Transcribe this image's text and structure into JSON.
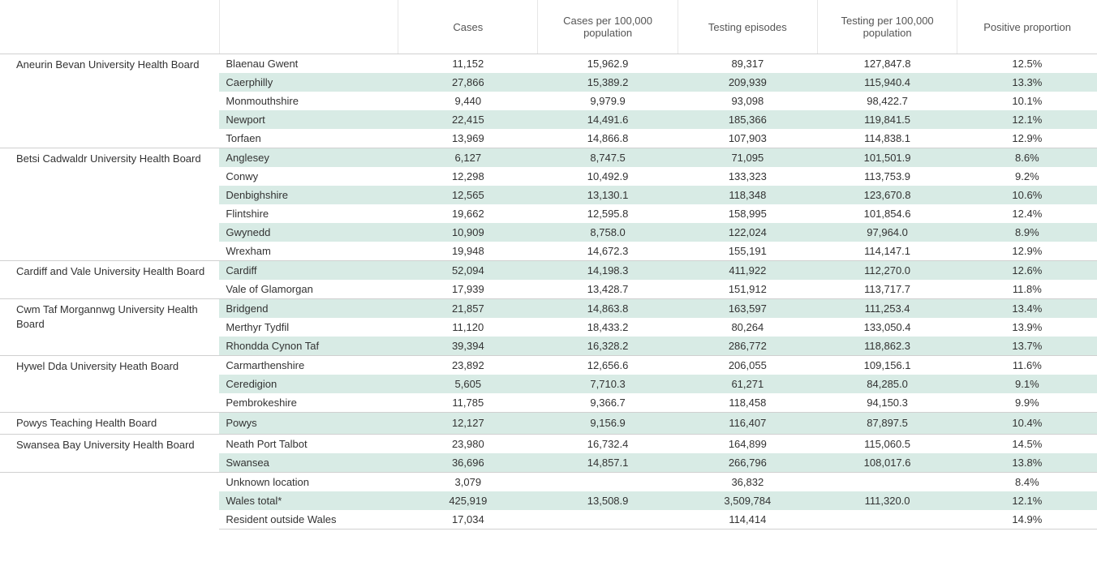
{
  "table": {
    "columns": [
      {
        "key": "cases",
        "label": "Cases"
      },
      {
        "key": "cases_per",
        "label": "Cases per 100,000 population"
      },
      {
        "key": "testing",
        "label": "Testing episodes"
      },
      {
        "key": "testing_per",
        "label": "Testing per 100,000 population"
      },
      {
        "key": "positive",
        "label": "Positive proportion"
      }
    ],
    "groups": [
      {
        "board": "Aneurin Bevan University Health Board",
        "rows": [
          {
            "area": "Blaenau Gwent",
            "cases": "11,152",
            "cases_per": "15,962.9",
            "testing": "89,317",
            "testing_per": "127,847.8",
            "positive": "12.5%"
          },
          {
            "area": "Caerphilly",
            "cases": "27,866",
            "cases_per": "15,389.2",
            "testing": "209,939",
            "testing_per": "115,940.4",
            "positive": "13.3%"
          },
          {
            "area": "Monmouthshire",
            "cases": "9,440",
            "cases_per": "9,979.9",
            "testing": "93,098",
            "testing_per": "98,422.7",
            "positive": "10.1%"
          },
          {
            "area": "Newport",
            "cases": "22,415",
            "cases_per": "14,491.6",
            "testing": "185,366",
            "testing_per": "119,841.5",
            "positive": "12.1%"
          },
          {
            "area": "Torfaen",
            "cases": "13,969",
            "cases_per": "14,866.8",
            "testing": "107,903",
            "testing_per": "114,838.1",
            "positive": "12.9%"
          }
        ]
      },
      {
        "board": "Betsi Cadwaldr University Health Board",
        "rows": [
          {
            "area": "Anglesey",
            "cases": "6,127",
            "cases_per": "8,747.5",
            "testing": "71,095",
            "testing_per": "101,501.9",
            "positive": "8.6%"
          },
          {
            "area": "Conwy",
            "cases": "12,298",
            "cases_per": "10,492.9",
            "testing": "133,323",
            "testing_per": "113,753.9",
            "positive": "9.2%"
          },
          {
            "area": "Denbighshire",
            "cases": "12,565",
            "cases_per": "13,130.1",
            "testing": "118,348",
            "testing_per": "123,670.8",
            "positive": "10.6%"
          },
          {
            "area": "Flintshire",
            "cases": "19,662",
            "cases_per": "12,595.8",
            "testing": "158,995",
            "testing_per": "101,854.6",
            "positive": "12.4%"
          },
          {
            "area": "Gwynedd",
            "cases": "10,909",
            "cases_per": "8,758.0",
            "testing": "122,024",
            "testing_per": "97,964.0",
            "positive": "8.9%"
          },
          {
            "area": "Wrexham",
            "cases": "19,948",
            "cases_per": "14,672.3",
            "testing": "155,191",
            "testing_per": "114,147.1",
            "positive": "12.9%"
          }
        ]
      },
      {
        "board": "Cardiff and Vale University Health Board",
        "rows": [
          {
            "area": "Cardiff",
            "cases": "52,094",
            "cases_per": "14,198.3",
            "testing": "411,922",
            "testing_per": "112,270.0",
            "positive": "12.6%"
          },
          {
            "area": "Vale of Glamorgan",
            "cases": "17,939",
            "cases_per": "13,428.7",
            "testing": "151,912",
            "testing_per": "113,717.7",
            "positive": "11.8%"
          }
        ]
      },
      {
        "board": "Cwm Taf Morgannwg University Health Board",
        "rows": [
          {
            "area": "Bridgend",
            "cases": "21,857",
            "cases_per": "14,863.8",
            "testing": "163,597",
            "testing_per": "111,253.4",
            "positive": "13.4%"
          },
          {
            "area": "Merthyr Tydfil",
            "cases": "11,120",
            "cases_per": "18,433.2",
            "testing": "80,264",
            "testing_per": "133,050.4",
            "positive": "13.9%"
          },
          {
            "area": "Rhondda Cynon Taf",
            "cases": "39,394",
            "cases_per": "16,328.2",
            "testing": "286,772",
            "testing_per": "118,862.3",
            "positive": "13.7%"
          }
        ]
      },
      {
        "board": "Hywel Dda University Heath Board",
        "rows": [
          {
            "area": "Carmarthenshire",
            "cases": "23,892",
            "cases_per": "12,656.6",
            "testing": "206,055",
            "testing_per": "109,156.1",
            "positive": "11.6%"
          },
          {
            "area": "Ceredigion",
            "cases": "5,605",
            "cases_per": "7,710.3",
            "testing": "61,271",
            "testing_per": "84,285.0",
            "positive": "9.1%"
          },
          {
            "area": "Pembrokeshire",
            "cases": "11,785",
            "cases_per": "9,366.7",
            "testing": "118,458",
            "testing_per": "94,150.3",
            "positive": "9.9%"
          }
        ]
      },
      {
        "board": "Powys Teaching Health Board",
        "rows": [
          {
            "area": "Powys",
            "cases": "12,127",
            "cases_per": "9,156.9",
            "testing": "116,407",
            "testing_per": "87,897.5",
            "positive": "10.4%"
          }
        ]
      },
      {
        "board": "Swansea Bay University Health Board",
        "rows": [
          {
            "area": "Neath Port Talbot",
            "cases": "23,980",
            "cases_per": "16,732.4",
            "testing": "164,899",
            "testing_per": "115,060.5",
            "positive": "14.5%"
          },
          {
            "area": "Swansea",
            "cases": "36,696",
            "cases_per": "14,857.1",
            "testing": "266,796",
            "testing_per": "108,017.6",
            "positive": "13.8%"
          }
        ]
      },
      {
        "board": "",
        "rows": [
          {
            "area": "Unknown location",
            "cases": "3,079",
            "cases_per": "",
            "testing": "36,832",
            "testing_per": "",
            "positive": "8.4%"
          },
          {
            "area": "Wales total*",
            "cases": "425,919",
            "cases_per": "13,508.9",
            "testing": "3,509,784",
            "testing_per": "111,320.0",
            "positive": "12.1%"
          },
          {
            "area": "Resident outside Wales",
            "cases": "17,034",
            "cases_per": "",
            "testing": "114,414",
            "testing_per": "",
            "positive": "14.9%"
          }
        ]
      }
    ],
    "stripe_colors": {
      "even": "#d8ebe5",
      "odd": "#ffffff"
    },
    "border_color": "#d0d0d0"
  }
}
